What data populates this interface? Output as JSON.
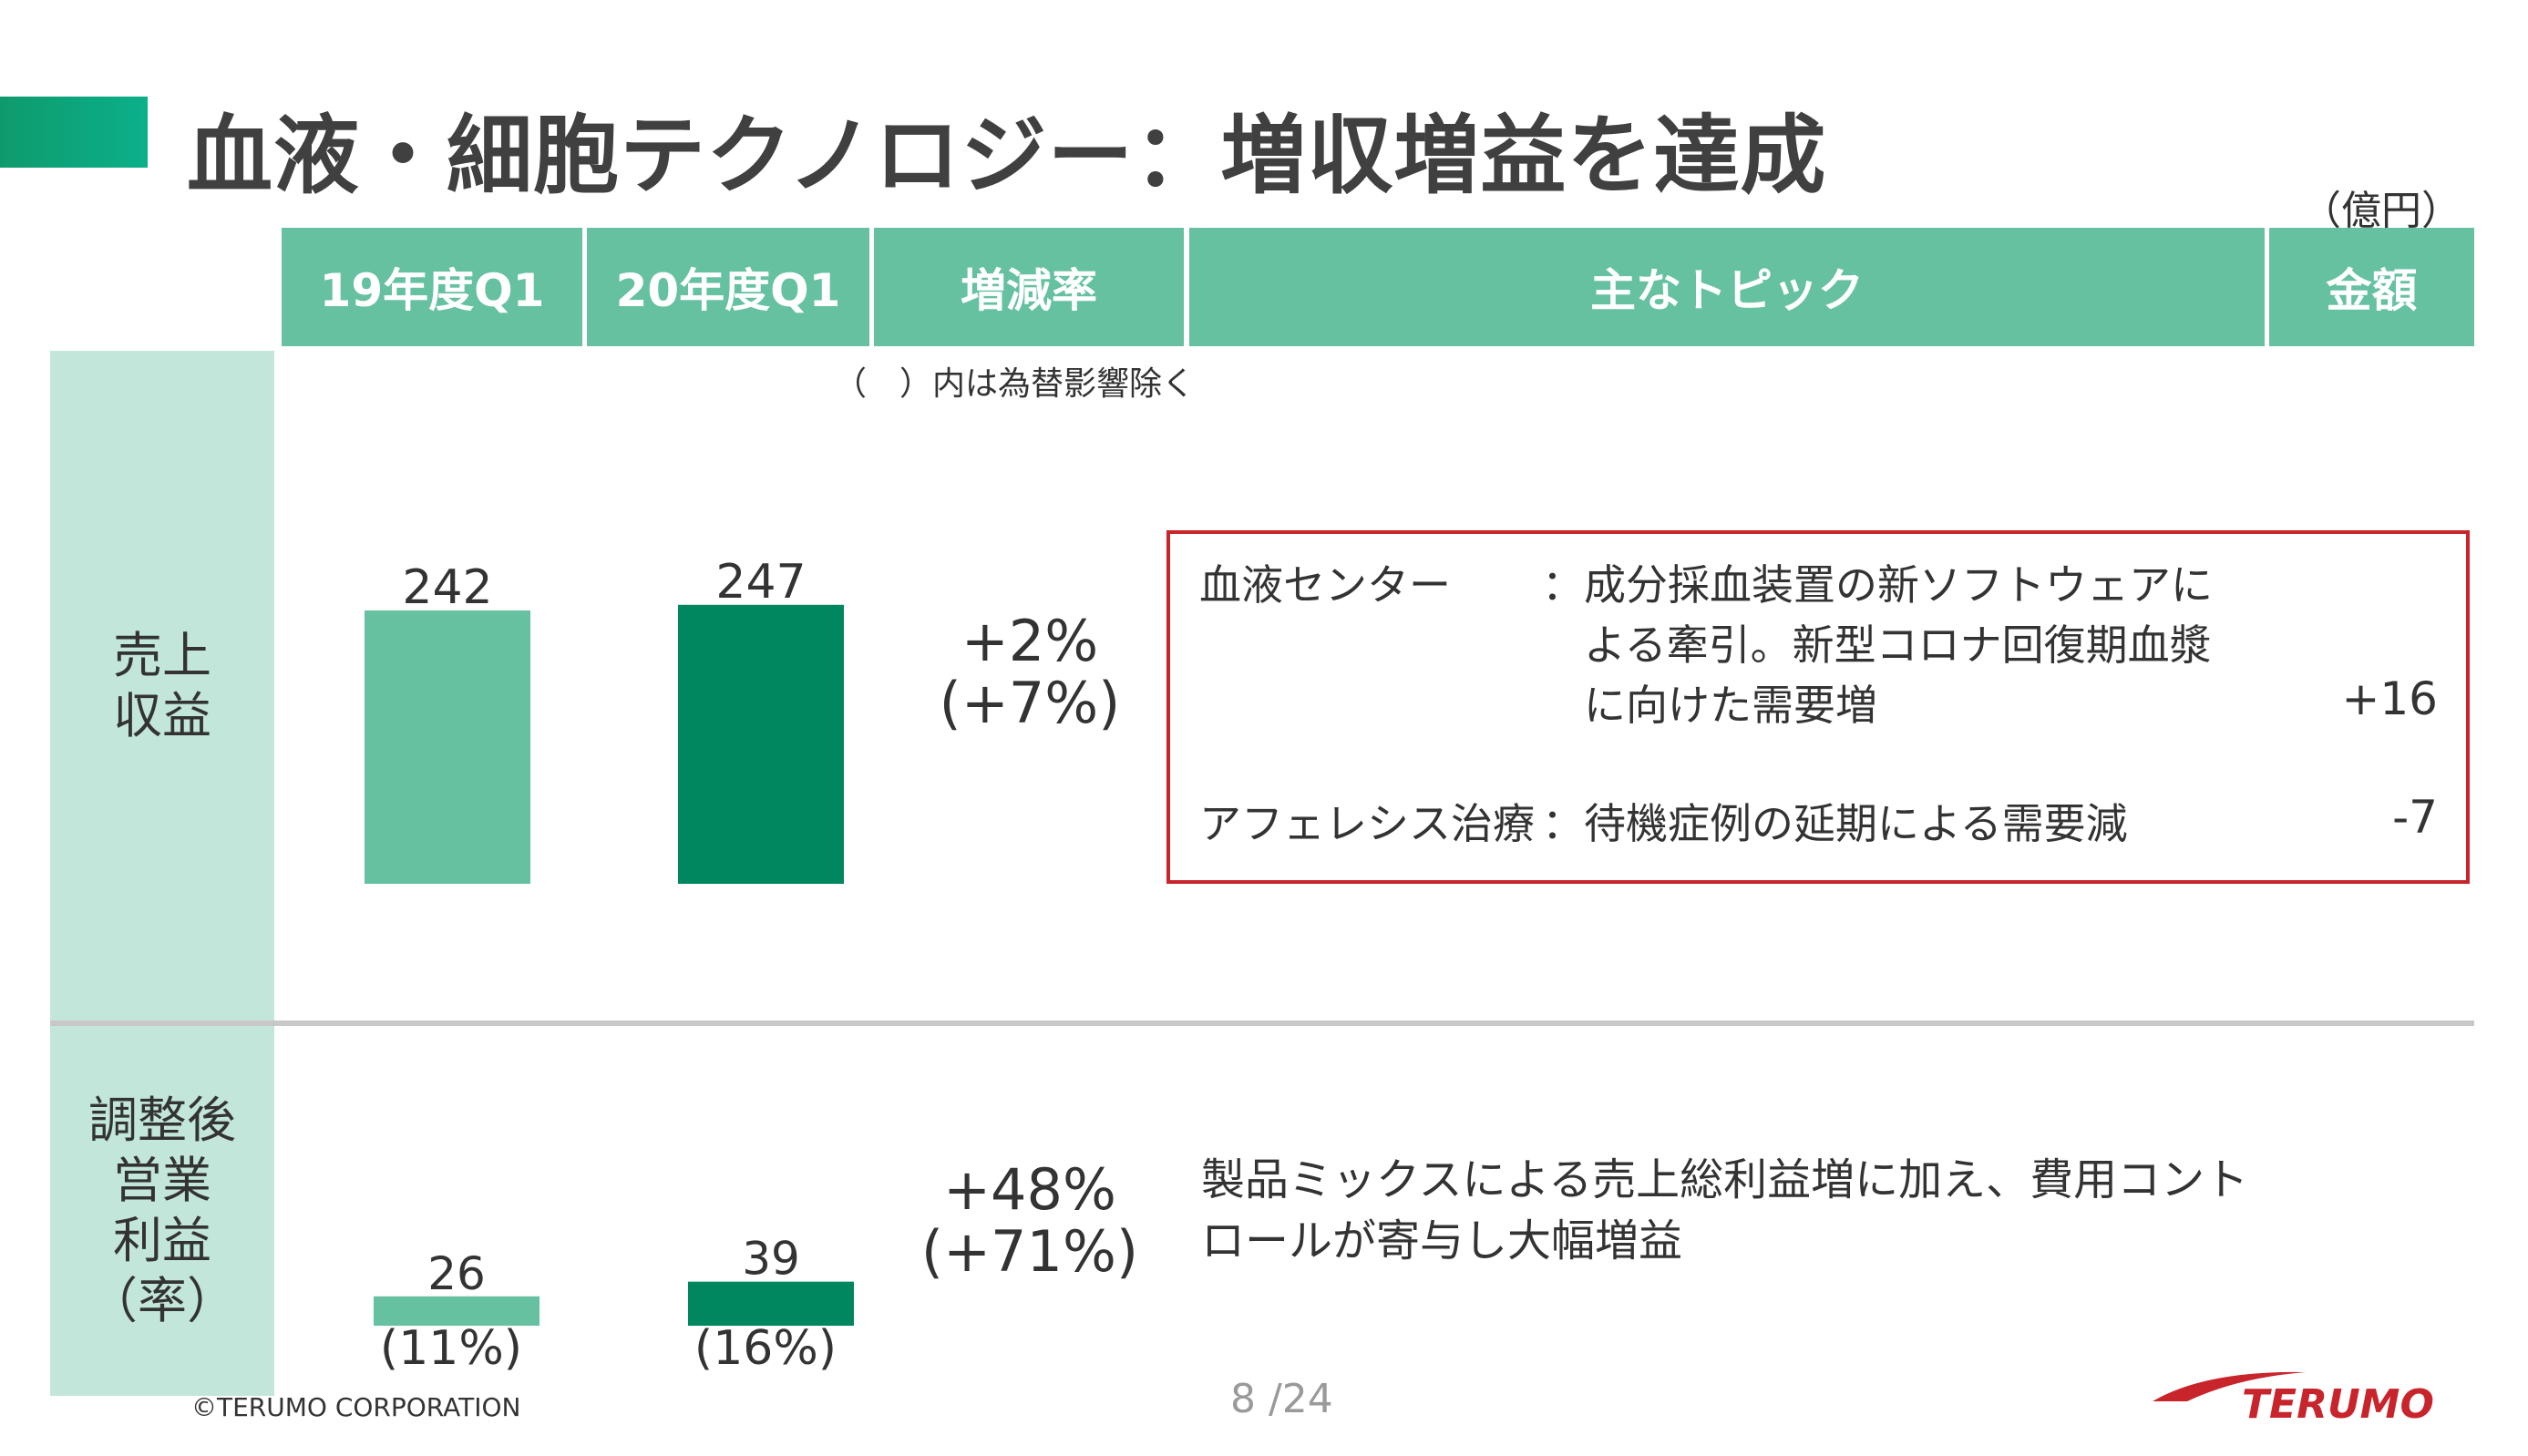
{
  "title": "血液・細胞テクノロジー：増収増益を達成",
  "unit": "（億円）",
  "header": {
    "col1": "19年度Q1",
    "col2": "20年度Q1",
    "col3": "増減率",
    "col4": "主なトピック",
    "col5": "金額"
  },
  "fx_note": "（　）内は為替影響除く",
  "revenue": {
    "label_line1": "売上",
    "label_line2": "収益",
    "rate": "+2%",
    "rate_fx": "(+7%)"
  },
  "topics": [
    {
      "name": "血液センター",
      "colon": "：",
      "lines": [
        "成分採血装置の新ソフトウェアに",
        "よる牽引。新型コロナ回復期血漿",
        "に向けた需要増"
      ],
      "amount": "+16"
    },
    {
      "name": "アフェレシス治療",
      "colon": "：",
      "lines": [
        "待機症例の延期による需要減"
      ],
      "amount": "-7"
    }
  ],
  "operating_income": {
    "label_lines": [
      "調整後",
      "営業",
      "利益",
      "（率）"
    ],
    "rate": "+48%",
    "rate_fx": "(+71%)",
    "margin_fy19": "(11%)",
    "margin_fy20": "(16%)",
    "comment_lines": [
      "製品ミックスによる売上総利益増に加え、費用コント",
      "ロールが寄与し大幅増益"
    ]
  },
  "chart_data": [
    {
      "type": "bar",
      "categories": [
        "19年度Q1",
        "20年度Q1"
      ],
      "values": [
        242,
        247
      ],
      "colors": [
        "#66c1a1",
        "#00875f"
      ]
    },
    {
      "type": "bar",
      "categories": [
        "19年度Q1",
        "20年度Q1"
      ],
      "values": [
        26,
        39
      ],
      "colors": [
        "#66c1a1",
        "#00875f"
      ]
    }
  ],
  "footer": {
    "copyright": "©TERUMO CORPORATION",
    "page": "8 /24",
    "logo_text": "TERUMO",
    "logo_color": "#c8242b"
  }
}
